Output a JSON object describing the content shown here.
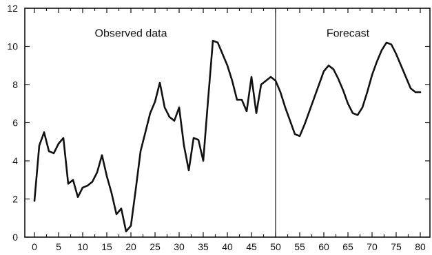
{
  "chart_data": {
    "type": "line",
    "title": "",
    "xlabel": "",
    "ylabel": "",
    "xlim": [
      -2,
      82
    ],
    "ylim": [
      0,
      12
    ],
    "x_ticks": [
      0,
      5,
      10,
      15,
      20,
      25,
      30,
      35,
      40,
      45,
      50,
      55,
      60,
      65,
      70,
      75,
      80
    ],
    "x_minor_ticks": [
      2.5,
      7.5,
      12.5,
      17.5,
      22.5,
      27.5,
      32.5,
      37.5,
      42.5,
      47.5,
      52.5,
      57.5,
      62.5,
      67.5,
      72.5,
      77.5
    ],
    "y_ticks": [
      0,
      2,
      4,
      6,
      8,
      10,
      12
    ],
    "grid": false,
    "divider_x": 50,
    "regions": [
      {
        "label": "Observed data",
        "x": 20,
        "y": 10.5
      },
      {
        "label": "Forecast",
        "x": 65,
        "y": 10.5
      }
    ],
    "series": [
      {
        "name": "",
        "x": [
          0,
          1,
          2,
          3,
          4,
          5,
          6,
          7,
          8,
          9,
          10,
          11,
          12,
          13,
          14,
          15,
          16,
          17,
          18,
          19,
          20,
          21,
          22,
          23,
          24,
          25,
          26,
          27,
          28,
          29,
          30,
          31,
          32,
          33,
          34,
          35,
          36,
          37,
          38,
          39,
          40,
          41,
          42,
          43,
          44,
          45,
          46,
          47,
          48,
          49,
          50,
          51,
          52,
          53,
          54,
          55,
          56,
          57,
          58,
          59,
          60,
          61,
          62,
          63,
          64,
          65,
          66,
          67,
          68,
          69,
          70,
          71,
          72,
          73,
          74,
          75,
          76,
          77,
          78,
          79,
          80
        ],
        "values": [
          1.9,
          4.8,
          5.5,
          4.5,
          4.4,
          4.9,
          5.2,
          2.8,
          3.0,
          2.1,
          2.6,
          2.7,
          2.9,
          3.4,
          4.3,
          3.2,
          2.3,
          1.2,
          1.5,
          0.3,
          0.6,
          2.5,
          4.5,
          5.5,
          6.5,
          7.1,
          8.1,
          6.8,
          6.3,
          6.1,
          6.8,
          4.8,
          3.5,
          5.2,
          5.1,
          4.0,
          7.2,
          10.3,
          10.2,
          9.6,
          9.0,
          8.2,
          7.2,
          7.2,
          6.6,
          8.4,
          6.5,
          8.0,
          8.2,
          8.4,
          8.2,
          7.6,
          6.8,
          6.1,
          5.4,
          5.3,
          5.9,
          6.6,
          7.3,
          8.0,
          8.7,
          9.0,
          8.8,
          8.3,
          7.7,
          7.0,
          6.5,
          6.4,
          6.8,
          7.6,
          8.5,
          9.2,
          9.8,
          10.2,
          10.1,
          9.6,
          9.0,
          8.4,
          7.8,
          7.6,
          7.6
        ]
      }
    ]
  }
}
